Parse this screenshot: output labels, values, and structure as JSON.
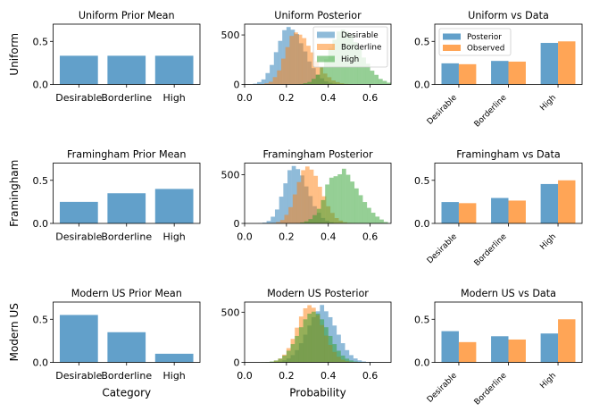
{
  "chart_data": [
    {
      "type": "bar",
      "kind": "bar",
      "title": "Uniform Prior Mean",
      "ylabel": "Uniform",
      "xlabel": "",
      "categories": [
        "Desirable",
        "Borderline",
        "High"
      ],
      "values": [
        0.333,
        0.333,
        0.333
      ],
      "color": "#1f77b4",
      "xlim": [
        -0.54,
        2.54
      ],
      "ylim": [
        0,
        0.7
      ],
      "yticks": [
        0,
        0.5
      ],
      "ytick_labels": [
        "0.0",
        "0.5"
      ],
      "grid": false
    },
    {
      "type": "bar",
      "kind": "histogram",
      "title": "Uniform Posterior",
      "ylabel": "",
      "xlabel": "",
      "series": [
        {
          "name": "Desirable",
          "color": "#1f77b4",
          "bin_start": 0.04,
          "bin_width": 0.02,
          "counts": [
            8,
            24,
            51,
            115,
            197,
            326,
            440,
            548,
            580,
            553,
            509,
            416,
            333,
            232,
            165,
            99,
            62,
            31,
            17,
            8,
            3,
            1
          ]
        },
        {
          "name": "Borderline",
          "color": "#ff7f0e",
          "bin_start": 0.075,
          "bin_width": 0.02,
          "counts": [
            3,
            12,
            27,
            74,
            142,
            261,
            377,
            490,
            525,
            503,
            468,
            391,
            324,
            236,
            174,
            110,
            73,
            40,
            24,
            12,
            6,
            3
          ]
        },
        {
          "name": "High",
          "color": "#2ca02c",
          "bin_start": 0.22,
          "bin_width": 0.02,
          "counts": [
            1,
            2,
            5,
            13,
            25,
            57,
            98,
            174,
            255,
            368,
            452,
            535,
            555,
            534,
            502,
            427,
            361,
            272,
            209,
            139,
            97,
            56,
            36,
            18,
            11,
            5
          ]
        }
      ],
      "xlim": [
        0,
        0.7
      ],
      "ylim": [
        0,
        609
      ],
      "xticks": [
        0,
        0.2,
        0.4,
        0.6
      ],
      "xtick_labels": [
        "0.0",
        "0.2",
        "0.4",
        "0.6"
      ],
      "yticks": [
        0,
        500
      ],
      "ytick_labels": [
        "0",
        "500"
      ],
      "legend": {
        "entries": [
          "Desirable",
          "Borderline",
          "High"
        ],
        "loc": "upper right"
      },
      "grid": false
    },
    {
      "type": "bar",
      "kind": "grouped_bar",
      "title": "Uniform vs Data",
      "ylabel": "",
      "xlabel": "",
      "categories": [
        "Desirable",
        "Borderline",
        "High"
      ],
      "series": [
        {
          "name": "Posterior",
          "color": "#1f77b4",
          "values": [
            0.245,
            0.273,
            0.482
          ]
        },
        {
          "name": "Observed",
          "color": "#ff7f0e",
          "values": [
            0.235,
            0.265,
            0.5
          ]
        }
      ],
      "xlim": [
        -0.485,
        2.485
      ],
      "ylim": [
        0,
        0.7
      ],
      "yticks": [
        0,
        0.5
      ],
      "ytick_labels": [
        "0.0",
        "0.5"
      ],
      "legend": {
        "entries": [
          "Posterior",
          "Observed"
        ],
        "loc": "upper left"
      },
      "grid": false
    },
    {
      "type": "bar",
      "kind": "bar",
      "title": "Framingham Prior Mean",
      "ylabel": "Framingham",
      "xlabel": "",
      "categories": [
        "Desirable",
        "Borderline",
        "High"
      ],
      "values": [
        0.25,
        0.35,
        0.4
      ],
      "color": "#1f77b4",
      "xlim": [
        -0.54,
        2.54
      ],
      "ylim": [
        0,
        0.7
      ],
      "yticks": [
        0,
        0.5
      ],
      "ytick_labels": [
        "0.0",
        "0.5"
      ],
      "grid": false
    },
    {
      "type": "bar",
      "kind": "histogram",
      "title": "Framingham Posterior",
      "ylabel": "",
      "xlabel": "",
      "series": [
        {
          "name": "Desirable",
          "color": "#1f77b4",
          "bin_start": 0.065,
          "bin_width": 0.02,
          "counts": [
            2,
            8,
            25,
            69,
            143,
            275,
            412,
            547,
            590,
            558,
            493,
            380,
            281,
            177,
            110,
            56,
            29,
            12,
            5,
            2
          ]
        },
        {
          "name": "Borderline",
          "color": "#ff7f0e",
          "bin_start": 0.13,
          "bin_width": 0.02,
          "counts": [
            4,
            14,
            35,
            88,
            167,
            298,
            425,
            547,
            585,
            553,
            489,
            377,
            279,
            176,
            108,
            55,
            29,
            12,
            5,
            2
          ]
        },
        {
          "name": "High",
          "color": "#2ca02c",
          "bin_start": 0.245,
          "bin_width": 0.02,
          "counts": [
            3,
            10,
            22,
            45,
            85,
            150,
            240,
            400,
            470,
            485,
            505,
            562,
            500,
            430,
            360,
            290,
            220,
            160,
            110,
            70,
            40,
            15
          ]
        }
      ],
      "xlim": [
        0,
        0.7
      ],
      "ylim": [
        0,
        620
      ],
      "xticks": [
        0,
        0.2,
        0.4,
        0.6
      ],
      "xtick_labels": [
        "0.0",
        "0.2",
        "0.4",
        "0.6"
      ],
      "yticks": [
        0,
        500
      ],
      "ytick_labels": [
        "0",
        "500"
      ],
      "grid": false
    },
    {
      "type": "bar",
      "kind": "grouped_bar",
      "title": "Framingham vs Data",
      "ylabel": "",
      "xlabel": "",
      "categories": [
        "Desirable",
        "Borderline",
        "High"
      ],
      "series": [
        {
          "name": "Posterior",
          "color": "#1f77b4",
          "values": [
            0.248,
            0.295,
            0.457
          ]
        },
        {
          "name": "Observed",
          "color": "#ff7f0e",
          "values": [
            0.235,
            0.265,
            0.5
          ]
        }
      ],
      "xlim": [
        -0.485,
        2.485
      ],
      "ylim": [
        0,
        0.7
      ],
      "yticks": [
        0,
        0.5
      ],
      "ytick_labels": [
        "0.0",
        "0.5"
      ],
      "grid": false
    },
    {
      "type": "bar",
      "kind": "bar",
      "title": "Modern US Prior Mean",
      "ylabel": "Modern US",
      "xlabel": "Category",
      "categories": [
        "Desirable",
        "Borderline",
        "High"
      ],
      "values": [
        0.55,
        0.35,
        0.1
      ],
      "color": "#1f77b4",
      "xlim": [
        -0.54,
        2.54
      ],
      "ylim": [
        0,
        0.7
      ],
      "yticks": [
        0,
        0.5
      ],
      "ytick_labels": [
        "0.0",
        "0.5"
      ],
      "grid": false
    },
    {
      "type": "bar",
      "kind": "histogram",
      "title": "Modern US Posterior",
      "ylabel": "",
      "xlabel": "Probability",
      "series": [
        {
          "name": "Desirable",
          "color": "#1f77b4",
          "bin_start": 0.1,
          "bin_width": 0.02,
          "counts": [
            1,
            2,
            4,
            9,
            20,
            39,
            72,
            122,
            191,
            276,
            367,
            450,
            509,
            572,
            509,
            450,
            367,
            276,
            191,
            122,
            72,
            39,
            20,
            9,
            4,
            2
          ]
        },
        {
          "name": "Borderline",
          "color": "#ff7f0e",
          "bin_start": 0.08,
          "bin_width": 0.02,
          "counts": [
            1,
            2,
            6,
            17,
            38,
            77,
            142,
            234,
            346,
            457,
            539,
            570,
            544,
            471,
            372,
            267,
            174,
            104,
            56,
            27,
            12,
            5,
            2
          ]
        },
        {
          "name": "High",
          "color": "#2ca02c",
          "bin_start": 0.08,
          "bin_width": 0.02,
          "counts": [
            2,
            4,
            9,
            19,
            37,
            68,
            116,
            182,
            263,
            350,
            429,
            485,
            505,
            485,
            429,
            350,
            263,
            182,
            116,
            68,
            37,
            19,
            9,
            4,
            2
          ]
        }
      ],
      "xlim": [
        0,
        0.7
      ],
      "ylim": [
        0,
        601
      ],
      "xticks": [
        0,
        0.2,
        0.4,
        0.6
      ],
      "xtick_labels": [
        "0.0",
        "0.2",
        "0.4",
        "0.6"
      ],
      "yticks": [
        0,
        500
      ],
      "ytick_labels": [
        "0",
        "500"
      ],
      "grid": false
    },
    {
      "type": "bar",
      "kind": "grouped_bar",
      "title": "Modern US vs Data",
      "ylabel": "",
      "xlabel": "",
      "categories": [
        "Desirable",
        "Borderline",
        "High"
      ],
      "series": [
        {
          "name": "Posterior",
          "color": "#1f77b4",
          "values": [
            0.362,
            0.303,
            0.335
          ]
        },
        {
          "name": "Observed",
          "color": "#ff7f0e",
          "values": [
            0.235,
            0.265,
            0.5
          ]
        }
      ],
      "xlim": [
        -0.485,
        2.485
      ],
      "ylim": [
        0,
        0.7
      ],
      "yticks": [
        0,
        0.5
      ],
      "ytick_labels": [
        "0.0",
        "0.5"
      ],
      "grid": false
    }
  ]
}
